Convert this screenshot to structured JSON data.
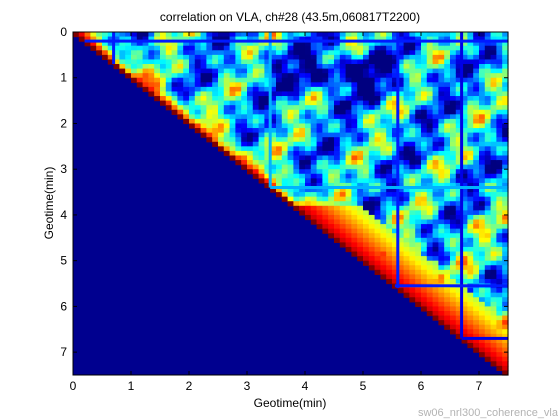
{
  "chart_data": {
    "type": "heatmap",
    "title": "correlation on VLA, ch#28 (43.5m,060817T2200)",
    "xlabel": "Geotime(min)",
    "ylabel": "Geotime(min)",
    "xlim": [
      0,
      7.5
    ],
    "ylim": [
      7.5,
      0
    ],
    "xticks": [
      "0",
      "1",
      "2",
      "3",
      "4",
      "5",
      "6",
      "7"
    ],
    "yticks": [
      "0",
      "1",
      "2",
      "3",
      "4",
      "5",
      "6",
      "7"
    ],
    "colormap": "jet",
    "value_range": [
      0,
      1
    ],
    "fill_below_diagonal": 0,
    "diagonal_value": 1,
    "grid": false,
    "legend": "none",
    "vertical_lines": [
      {
        "x": 0.7,
        "value": 0.15
      },
      {
        "x": 3.4,
        "value": 0.3
      },
      {
        "x": 5.6,
        "value": 0.15
      },
      {
        "x": 6.7,
        "value": 0.1
      }
    ],
    "horizontal_lines": [
      {
        "y": 0.2,
        "value": 0.15
      },
      {
        "y": 3.4,
        "value": 0.3
      },
      {
        "y": 5.55,
        "value": 0.15
      },
      {
        "y": 6.7,
        "value": 0.1
      }
    ],
    "notes": "upper triangle shows coherence values; strong low-correlation band near y=0.5-1.3 for x=3.5-5.5; red/orange near diagonal"
  },
  "footer": "sw06_nrl300_coherence_vla",
  "colors": {
    "low": "#00008f",
    "high": "#800000"
  }
}
